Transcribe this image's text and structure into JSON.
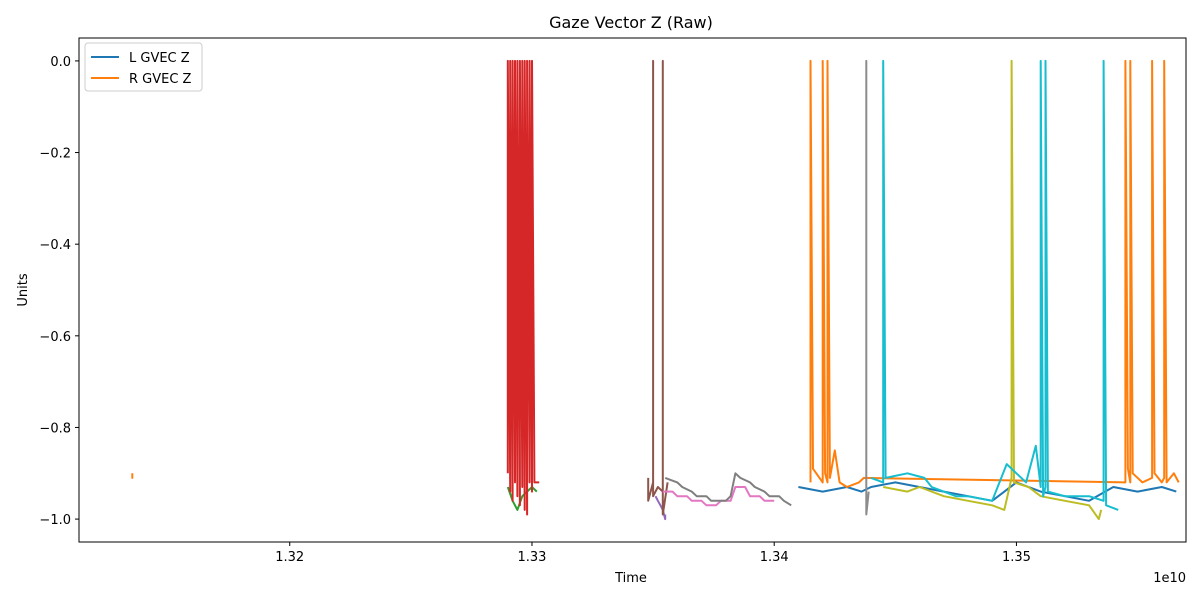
{
  "chart_data": {
    "type": "line",
    "title": "Gaze Vector Z (Raw)",
    "xlabel": "Time",
    "ylabel": "Units",
    "x_offset_label": "1e10",
    "xlim": [
      1.3113,
      1.357
    ],
    "ylim": [
      -1.05,
      0.05
    ],
    "x_ticks": [
      1.32,
      1.33,
      1.34,
      1.35
    ],
    "x_tick_labels": [
      "1.32",
      "1.33",
      "1.34",
      "1.35"
    ],
    "y_ticks": [
      0.0,
      -0.2,
      -0.4,
      -0.6,
      -0.8,
      -1.0
    ],
    "y_tick_labels": [
      "0.0",
      "−0.2",
      "−0.4",
      "−0.6",
      "−0.8",
      "−1.0"
    ],
    "grid": false,
    "legend": {
      "placement": "top-left",
      "entries": [
        {
          "label": "L GVEC Z",
          "color": "#1f77b4"
        },
        {
          "label": "R GVEC Z",
          "color": "#ff7f0e"
        }
      ]
    },
    "series": [
      {
        "color": "#ff7f0e",
        "x": [
          1.3135,
          1.3135,
          1.3135
        ],
        "y": [
          -0.9,
          -0.91,
          -0.9
        ]
      },
      {
        "color": "#2ca02c",
        "x": [
          1.329,
          1.3292,
          1.3294,
          1.3296,
          1.3298,
          1.33,
          1.3302
        ],
        "y": [
          -0.93,
          -0.96,
          -0.98,
          -0.95,
          -0.94,
          -0.93,
          -0.94
        ]
      },
      {
        "color": "#d62728",
        "x": [
          1.329,
          1.329,
          1.3291,
          1.3291,
          1.3292,
          1.3292,
          1.3293,
          1.3293,
          1.3294,
          1.3294,
          1.3295,
          1.3295,
          1.3296,
          1.3296,
          1.3297,
          1.3297,
          1.3298,
          1.3298,
          1.3299,
          1.3299,
          1.33,
          1.33,
          1.3301,
          1.3303
        ],
        "y": [
          -0.9,
          0.0,
          -0.94,
          0.0,
          -0.96,
          0.0,
          -0.92,
          0.0,
          -0.95,
          0.0,
          -0.97,
          0.0,
          -0.93,
          0.0,
          -0.98,
          0.0,
          -0.99,
          0.0,
          -0.92,
          0.0,
          -0.94,
          0.0,
          -0.92,
          -0.92
        ]
      },
      {
        "color": "#9467bd",
        "x": [
          1.3351,
          1.3352,
          1.3353,
          1.3354,
          1.3355,
          1.3355
        ],
        "y": [
          -0.95,
          -0.96,
          -0.97,
          -0.98,
          -1.0,
          -0.99
        ]
      },
      {
        "color": "#8c564b",
        "x": [
          1.3348,
          1.3348,
          1.335,
          1.335,
          1.335,
          1.3352,
          1.3354,
          1.3354,
          1.3354,
          1.3356
        ],
        "y": [
          -0.91,
          -0.96,
          -0.92,
          0.0,
          -0.95,
          -0.93,
          -0.94,
          0.0,
          -0.99,
          -0.92
        ]
      },
      {
        "color": "#e377c2",
        "x": [
          1.3354,
          1.3358,
          1.336,
          1.3364,
          1.3366,
          1.337,
          1.3372,
          1.3376,
          1.3378,
          1.3382,
          1.3384,
          1.3388,
          1.339,
          1.3394,
          1.3396,
          1.34
        ],
        "y": [
          -0.94,
          -0.94,
          -0.95,
          -0.95,
          -0.96,
          -0.96,
          -0.97,
          -0.97,
          -0.96,
          -0.96,
          -0.93,
          -0.93,
          -0.95,
          -0.95,
          -0.96,
          -0.96
        ]
      },
      {
        "color": "#7f7f7f",
        "x": [
          1.3355,
          1.336,
          1.3362,
          1.3366,
          1.3368,
          1.3372,
          1.3374,
          1.338,
          1.3382,
          1.3384,
          1.3386,
          1.339,
          1.3392,
          1.3396,
          1.3398,
          1.3402,
          1.3404,
          1.3407
        ],
        "y": [
          -0.91,
          -0.92,
          -0.93,
          -0.94,
          -0.95,
          -0.95,
          -0.96,
          -0.96,
          -0.95,
          -0.9,
          -0.91,
          -0.92,
          -0.93,
          -0.94,
          -0.95,
          -0.95,
          -0.96,
          -0.97
        ]
      },
      {
        "color": "#1f77b4",
        "x": [
          1.341,
          1.342,
          1.343,
          1.3436,
          1.344,
          1.345,
          1.346,
          1.347,
          1.348,
          1.349,
          1.35,
          1.351,
          1.352,
          1.353,
          1.354,
          1.355,
          1.356,
          1.3566
        ],
        "y": [
          -0.93,
          -0.94,
          -0.93,
          -0.94,
          -0.93,
          -0.92,
          -0.93,
          -0.94,
          -0.95,
          -0.96,
          -0.92,
          -0.94,
          -0.95,
          -0.96,
          -0.93,
          -0.94,
          -0.93,
          -0.94
        ]
      },
      {
        "color": "#ff7f0e",
        "x": [
          1.3415,
          1.3415,
          1.3416,
          1.342,
          1.342,
          1.3421,
          1.3422,
          1.3422,
          1.3423,
          1.3425,
          1.3427,
          1.343,
          1.3435,
          1.3437,
          1.3545,
          1.3545,
          1.3546,
          1.3547,
          1.3547,
          1.3548,
          1.3552,
          1.3556,
          1.3556,
          1.3557,
          1.356,
          1.3561,
          1.3561,
          1.3562,
          1.3565,
          1.3567
        ],
        "y": [
          -0.92,
          0.0,
          -0.89,
          -0.92,
          0.0,
          -0.9,
          -0.92,
          0.0,
          -0.91,
          -0.85,
          -0.92,
          -0.93,
          -0.92,
          -0.91,
          -0.92,
          0.0,
          -0.89,
          -0.92,
          0.0,
          -0.9,
          -0.92,
          -0.91,
          0.0,
          -0.9,
          -0.92,
          -0.91,
          0.0,
          -0.92,
          -0.9,
          -0.92
        ]
      },
      {
        "color": "#8c8c8c",
        "x": [
          1.3438,
          1.3438,
          1.3438,
          1.3439
        ],
        "y": [
          -0.92,
          0.0,
          -0.99,
          -0.94
        ]
      },
      {
        "color": "#bcbd22",
        "x": [
          1.3445,
          1.3455,
          1.346,
          1.347,
          1.348,
          1.349,
          1.3495,
          1.3498,
          1.3498,
          1.3499,
          1.3505,
          1.351,
          1.352,
          1.353,
          1.3534,
          1.3535
        ],
        "y": [
          -0.93,
          -0.94,
          -0.93,
          -0.95,
          -0.96,
          -0.97,
          -0.98,
          -0.91,
          0.0,
          -0.92,
          -0.93,
          -0.95,
          -0.96,
          -0.97,
          -1.0,
          -0.98
        ]
      },
      {
        "color": "#17becf",
        "x": [
          1.344,
          1.3445,
          1.3445,
          1.3446,
          1.3455,
          1.3462,
          1.3465,
          1.347,
          1.3475,
          1.348,
          1.349,
          1.3496,
          1.35,
          1.3504,
          1.3508,
          1.351,
          1.351,
          1.3511,
          1.3512,
          1.3512,
          1.3513,
          1.352,
          1.353,
          1.3536,
          1.3536,
          1.3537,
          1.3542
        ],
        "y": [
          -0.91,
          -0.92,
          0.0,
          -0.91,
          -0.9,
          -0.91,
          -0.93,
          -0.94,
          -0.95,
          -0.95,
          -0.96,
          -0.88,
          -0.9,
          -0.92,
          -0.84,
          -0.93,
          0.0,
          -0.95,
          -0.93,
          0.0,
          -0.94,
          -0.95,
          -0.95,
          -0.96,
          0.0,
          -0.97,
          -0.98
        ]
      }
    ]
  }
}
